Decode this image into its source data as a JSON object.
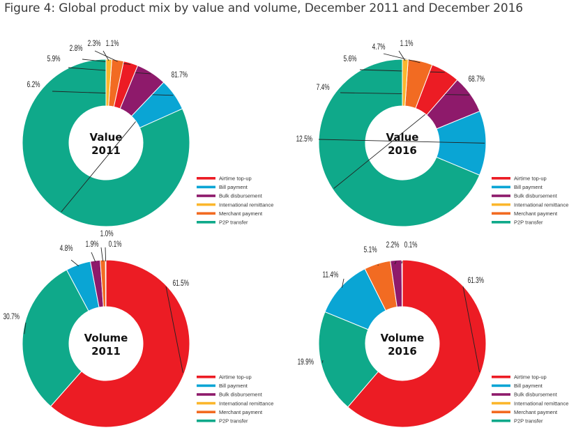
{
  "figure_title": "Figure 4: Global product mix by value and volume, December 2011 and December 2016",
  "colors": {
    "airtime": "#ec1c24",
    "bill": "#0aa5d4",
    "bulk": "#8e1a6b",
    "international": "#fbb62c",
    "merchant": "#f26b22",
    "p2p": "#0fa98a"
  },
  "chart_data": [
    {
      "type": "pie",
      "variant": "donut",
      "title_line1": "Value",
      "title_line2": "2011",
      "slices": [
        {
          "label": "P2P transfer",
          "key": "p2p",
          "value": 81.7,
          "text": "81.7%"
        },
        {
          "label": "Bill payment",
          "key": "bill",
          "value": 6.2,
          "text": "6.2%"
        },
        {
          "label": "Bulk disbursement",
          "key": "bulk",
          "value": 5.9,
          "text": "5.9%"
        },
        {
          "label": "Airtime top-up",
          "key": "airtime",
          "value": 2.8,
          "text": "2.8%"
        },
        {
          "label": "Merchant payment",
          "key": "merchant",
          "value": 2.3,
          "text": "2.3%"
        },
        {
          "label": "International remittance",
          "key": "international",
          "value": 1.1,
          "text": "1.1%"
        }
      ],
      "legend": [
        "Airtime top-up",
        "Bill payment",
        "Bulk disbursement",
        "International remittance",
        "Merchant payment",
        "P2P transfer"
      ]
    },
    {
      "type": "pie",
      "variant": "donut",
      "title_line1": "Value",
      "title_line2": "2016",
      "slices": [
        {
          "label": "P2P transfer",
          "key": "p2p",
          "value": 68.7,
          "text": "68.7%"
        },
        {
          "label": "Bill payment",
          "key": "bill",
          "value": 12.5,
          "text": "12.5%"
        },
        {
          "label": "Bulk disbursement",
          "key": "bulk",
          "value": 7.4,
          "text": "7.4%"
        },
        {
          "label": "Airtime top-up",
          "key": "airtime",
          "value": 5.6,
          "text": "5.6%"
        },
        {
          "label": "Merchant payment",
          "key": "merchant",
          "value": 4.7,
          "text": "4.7%"
        },
        {
          "label": "International remittance",
          "key": "international",
          "value": 1.1,
          "text": "1.1%"
        }
      ],
      "legend": [
        "Airtime top-up",
        "Bill payment",
        "Bulk disbursement",
        "International remittance",
        "Merchant payment",
        "P2P transfer"
      ]
    },
    {
      "type": "pie",
      "variant": "donut",
      "title_line1": "Volume",
      "title_line2": "2011",
      "slices": [
        {
          "label": "Airtime top-up",
          "key": "airtime",
          "value": 61.5,
          "text": "61.5%"
        },
        {
          "label": "P2P transfer",
          "key": "p2p",
          "value": 30.7,
          "text": "30.7%"
        },
        {
          "label": "Bill payment",
          "key": "bill",
          "value": 4.8,
          "text": "4.8%"
        },
        {
          "label": "Bulk disbursement",
          "key": "bulk",
          "value": 1.9,
          "text": "1.9%"
        },
        {
          "label": "Merchant payment",
          "key": "merchant",
          "value": 1.0,
          "text": "1.0%"
        },
        {
          "label": "International remittance",
          "key": "international",
          "value": 0.1,
          "text": "0.1%"
        }
      ],
      "legend": [
        "Airtime top-up",
        "Bill payment",
        "Bulk disbursement",
        "International remittance",
        "Merchant payment",
        "P2P transfer"
      ]
    },
    {
      "type": "pie",
      "variant": "donut",
      "title_line1": "Volume",
      "title_line2": "2016",
      "slices": [
        {
          "label": "Airtime top-up",
          "key": "airtime",
          "value": 61.3,
          "text": "61.3%"
        },
        {
          "label": "P2P transfer",
          "key": "p2p",
          "value": 19.9,
          "text": "19.9%"
        },
        {
          "label": "Bill payment",
          "key": "bill",
          "value": 11.4,
          "text": "11.4%"
        },
        {
          "label": "Merchant payment",
          "key": "merchant",
          "value": 5.1,
          "text": "5.1%"
        },
        {
          "label": "Bulk disbursement",
          "key": "bulk",
          "value": 2.2,
          "text": "2.2%"
        },
        {
          "label": "International remittance",
          "key": "international",
          "value": 0.1,
          "text": "0.1%"
        }
      ],
      "legend": [
        "Airtime top-up",
        "Bill payment",
        "Bulk disbursement",
        "International remittance",
        "Merchant payment",
        "P2P transfer"
      ]
    }
  ]
}
